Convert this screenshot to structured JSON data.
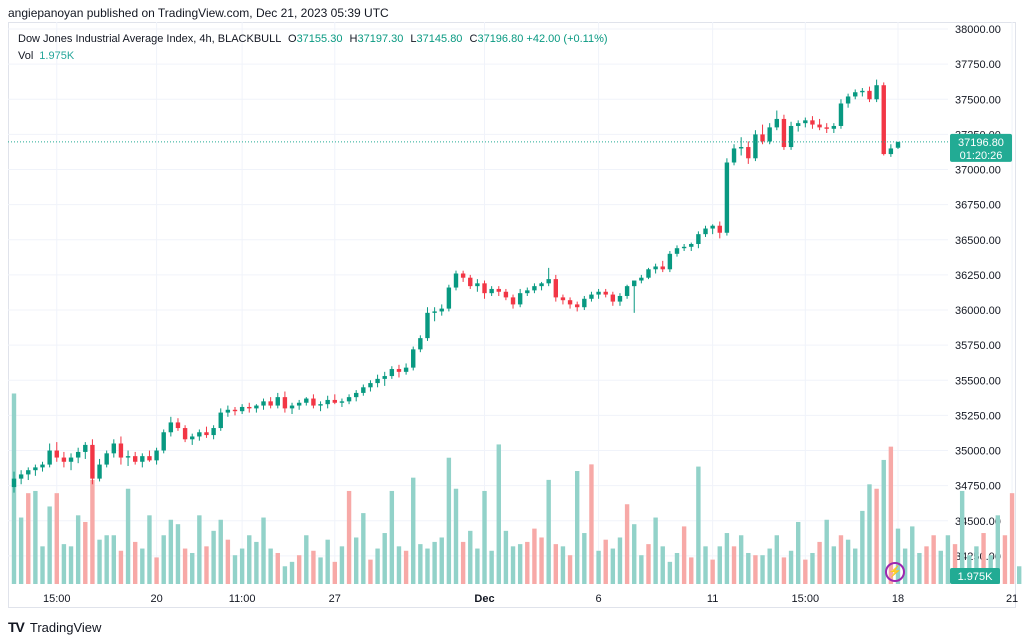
{
  "publisher": "angiepanoyan published on TradingView.com, Dec 21, 2023 05:39 UTC",
  "legend": {
    "symbol": "Dow Jones Industrial Average Index, 4h, BLACKBULL",
    "open_k": "O",
    "open": "37155.30",
    "high_k": "H",
    "high": "37197.30",
    "low_k": "L",
    "low": "37145.80",
    "close_k": "C",
    "close": "37196.80",
    "change": "+42.00 (+0.11%)",
    "vol_label": "Vol",
    "vol_value": "1.975K"
  },
  "price_tag": {
    "price": "37196.80",
    "countdown": "01:20:26"
  },
  "volume_tag": "1.975K",
  "footer": {
    "brand": "TradingView"
  },
  "colors": {
    "up": "#089981",
    "down": "#f23645",
    "vol_up": "#92d2c9",
    "vol_down": "#f7a9a7",
    "grid": "#f0f3fa",
    "price_line": "#22ab94"
  },
  "chart_data": {
    "type": "candlestick",
    "title": "Dow Jones Industrial Average Index, 4h, BLACKBULL",
    "ylim": [
      34050,
      38050
    ],
    "y_ticks": [
      "34250.00",
      "34500.00",
      "34750.00",
      "35000.00",
      "35250.00",
      "35500.00",
      "35750.00",
      "36000.00",
      "36250.00",
      "36500.00",
      "36750.00",
      "37000.00",
      "37250.00",
      "37500.00",
      "37750.00",
      "38000.00"
    ],
    "x_ticks": [
      {
        "label": "15:00",
        "index": 6
      },
      {
        "label": "20",
        "index": 20
      },
      {
        "label": "11:00",
        "index": 32
      },
      {
        "label": "27",
        "index": 45
      },
      {
        "label": "Dec",
        "index": 66
      },
      {
        "label": "6",
        "index": 82
      },
      {
        "label": "11",
        "index": 98
      },
      {
        "label": "15:00",
        "index": 111
      },
      {
        "label": "18",
        "index": 124
      },
      {
        "label": "21",
        "index": 140
      }
    ],
    "candles": [
      [
        34740,
        34850,
        34700,
        34800
      ],
      [
        34800,
        34860,
        34760,
        34830
      ],
      [
        34830,
        34880,
        34790,
        34860
      ],
      [
        34860,
        34900,
        34820,
        34880
      ],
      [
        34880,
        34920,
        34850,
        34900
      ],
      [
        34900,
        35050,
        34880,
        35000
      ],
      [
        35000,
        35060,
        34920,
        34950
      ],
      [
        34950,
        34990,
        34880,
        34920
      ],
      [
        34920,
        34980,
        34860,
        34950
      ],
      [
        34950,
        35020,
        34910,
        34990
      ],
      [
        34990,
        35060,
        34940,
        35040
      ],
      [
        35040,
        35080,
        34760,
        34800
      ],
      [
        34800,
        34940,
        34780,
        34900
      ],
      [
        34900,
        35000,
        34880,
        34980
      ],
      [
        34980,
        35080,
        34950,
        35050
      ],
      [
        35050,
        35100,
        34900,
        34950
      ],
      [
        34950,
        35000,
        34890,
        34960
      ],
      [
        34960,
        34990,
        34900,
        34920
      ],
      [
        34920,
        34980,
        34880,
        34960
      ],
      [
        34960,
        35000,
        34920,
        34930
      ],
      [
        34930,
        35020,
        34900,
        35000
      ],
      [
        35000,
        35150,
        34980,
        35130
      ],
      [
        35130,
        35240,
        35100,
        35200
      ],
      [
        35200,
        35230,
        35140,
        35160
      ],
      [
        35160,
        35180,
        35060,
        35080
      ],
      [
        35080,
        35120,
        35040,
        35100
      ],
      [
        35100,
        35150,
        35070,
        35130
      ],
      [
        35130,
        35170,
        35090,
        35110
      ],
      [
        35110,
        35180,
        35080,
        35160
      ],
      [
        35160,
        35300,
        35140,
        35270
      ],
      [
        35270,
        35320,
        35240,
        35290
      ],
      [
        35290,
        35310,
        35250,
        35280
      ],
      [
        35280,
        35330,
        35260,
        35310
      ],
      [
        35310,
        35340,
        35270,
        35300
      ],
      [
        35300,
        35330,
        35270,
        35320
      ],
      [
        35320,
        35370,
        35290,
        35350
      ],
      [
        35350,
        35380,
        35300,
        35320
      ],
      [
        35320,
        35410,
        35300,
        35380
      ],
      [
        35380,
        35420,
        35270,
        35300
      ],
      [
        35300,
        35340,
        35260,
        35320
      ],
      [
        35320,
        35360,
        35290,
        35340
      ],
      [
        35340,
        35380,
        35320,
        35370
      ],
      [
        35370,
        35400,
        35300,
        35320
      ],
      [
        35320,
        35350,
        35280,
        35330
      ],
      [
        35330,
        35390,
        35300,
        35360
      ],
      [
        35360,
        35400,
        35330,
        35340
      ],
      [
        35340,
        35370,
        35310,
        35350
      ],
      [
        35350,
        35400,
        35330,
        35380
      ],
      [
        35380,
        35430,
        35350,
        35410
      ],
      [
        35410,
        35470,
        35390,
        35450
      ],
      [
        35450,
        35500,
        35420,
        35480
      ],
      [
        35480,
        35540,
        35450,
        35510
      ],
      [
        35510,
        35560,
        35460,
        35530
      ],
      [
        35530,
        35600,
        35510,
        35580
      ],
      [
        35580,
        35610,
        35520,
        35560
      ],
      [
        35560,
        35620,
        35540,
        35590
      ],
      [
        35590,
        35740,
        35570,
        35720
      ],
      [
        35720,
        35820,
        35700,
        35800
      ],
      [
        35800,
        36020,
        35780,
        35980
      ],
      [
        35980,
        36020,
        35920,
        35990
      ],
      [
        35990,
        36040,
        35960,
        36010
      ],
      [
        36010,
        36180,
        35990,
        36160
      ],
      [
        36160,
        36280,
        36140,
        36260
      ],
      [
        36260,
        36280,
        36200,
        36230
      ],
      [
        36230,
        36250,
        36150,
        36170
      ],
      [
        36170,
        36220,
        36130,
        36190
      ],
      [
        36190,
        36210,
        36080,
        36120
      ],
      [
        36120,
        36170,
        36100,
        36150
      ],
      [
        36150,
        36170,
        36100,
        36130
      ],
      [
        36130,
        36150,
        36070,
        36090
      ],
      [
        36090,
        36110,
        36010,
        36040
      ],
      [
        36040,
        36150,
        36020,
        36120
      ],
      [
        36120,
        36160,
        36100,
        36140
      ],
      [
        36140,
        36190,
        36120,
        36170
      ],
      [
        36170,
        36200,
        36140,
        36190
      ],
      [
        36190,
        36300,
        36170,
        36220
      ],
      [
        36220,
        36250,
        36060,
        36090
      ],
      [
        36090,
        36110,
        36040,
        36070
      ],
      [
        36070,
        36090,
        36010,
        36040
      ],
      [
        36040,
        36060,
        35990,
        36020
      ],
      [
        36020,
        36100,
        36000,
        36080
      ],
      [
        36080,
        36130,
        36060,
        36110
      ],
      [
        36110,
        36150,
        36080,
        36130
      ],
      [
        36130,
        36150,
        36090,
        36110
      ],
      [
        36110,
        36130,
        36030,
        36060
      ],
      [
        36060,
        36120,
        36030,
        36100
      ],
      [
        36100,
        36180,
        36080,
        36170
      ],
      [
        36170,
        36200,
        35980,
        36210
      ],
      [
        36210,
        36250,
        36190,
        36230
      ],
      [
        36230,
        36300,
        36220,
        36290
      ],
      [
        36290,
        36330,
        36260,
        36310
      ],
      [
        36310,
        36350,
        36270,
        36290
      ],
      [
        36290,
        36420,
        36270,
        36400
      ],
      [
        36400,
        36460,
        36380,
        36440
      ],
      [
        36440,
        36470,
        36420,
        36450
      ],
      [
        36450,
        36480,
        36420,
        36470
      ],
      [
        36470,
        36560,
        36440,
        36540
      ],
      [
        36540,
        36600,
        36520,
        36580
      ],
      [
        36580,
        36610,
        36540,
        36600
      ],
      [
        36600,
        36630,
        36510,
        36550
      ],
      [
        36550,
        37080,
        36530,
        37050
      ],
      [
        37050,
        37180,
        37030,
        37150
      ],
      [
        37150,
        37230,
        37100,
        37160
      ],
      [
        37160,
        37200,
        37040,
        37080
      ],
      [
        37080,
        37280,
        37060,
        37250
      ],
      [
        37250,
        37320,
        37180,
        37200
      ],
      [
        37200,
        37330,
        37180,
        37300
      ],
      [
        37300,
        37420,
        37280,
        37360
      ],
      [
        37360,
        37390,
        37140,
        37160
      ],
      [
        37160,
        37340,
        37140,
        37310
      ],
      [
        37310,
        37350,
        37270,
        37330
      ],
      [
        37330,
        37370,
        37300,
        37350
      ],
      [
        37350,
        37380,
        37290,
        37320
      ],
      [
        37320,
        37360,
        37280,
        37300
      ],
      [
        37300,
        37330,
        37260,
        37290
      ],
      [
        37290,
        37330,
        37260,
        37310
      ],
      [
        37310,
        37500,
        37290,
        37470
      ],
      [
        37470,
        37540,
        37440,
        37520
      ],
      [
        37520,
        37570,
        37500,
        37550
      ],
      [
        37550,
        37580,
        37520,
        37560
      ],
      [
        37560,
        37590,
        37480,
        37500
      ],
      [
        37500,
        37640,
        37480,
        37600
      ],
      [
        37600,
        37620,
        37100,
        37110
      ],
      [
        37110,
        37180,
        37090,
        37150
      ],
      [
        37155,
        37197,
        37146,
        37197
      ]
    ],
    "volume": [
      [
        860,
        1
      ],
      [
        300,
        1
      ],
      [
        410,
        0
      ],
      [
        420,
        1
      ],
      [
        170,
        1
      ],
      [
        350,
        1
      ],
      [
        410,
        0
      ],
      [
        180,
        1
      ],
      [
        170,
        1
      ],
      [
        310,
        1
      ],
      [
        280,
        0
      ],
      [
        470,
        0
      ],
      [
        200,
        1
      ],
      [
        220,
        1
      ],
      [
        220,
        1
      ],
      [
        150,
        0
      ],
      [
        430,
        1
      ],
      [
        190,
        0
      ],
      [
        160,
        1
      ],
      [
        310,
        1
      ],
      [
        120,
        0
      ],
      [
        220,
        1
      ],
      [
        290,
        1
      ],
      [
        270,
        1
      ],
      [
        160,
        0
      ],
      [
        140,
        1
      ],
      [
        310,
        1
      ],
      [
        170,
        0
      ],
      [
        240,
        1
      ],
      [
        290,
        1
      ],
      [
        200,
        0
      ],
      [
        130,
        1
      ],
      [
        160,
        1
      ],
      [
        220,
        1
      ],
      [
        190,
        1
      ],
      [
        300,
        1
      ],
      [
        160,
        1
      ],
      [
        140,
        0
      ],
      [
        80,
        1
      ],
      [
        100,
        1
      ],
      [
        130,
        0
      ],
      [
        220,
        1
      ],
      [
        150,
        0
      ],
      [
        120,
        1
      ],
      [
        200,
        1
      ],
      [
        100,
        0
      ],
      [
        170,
        1
      ],
      [
        420,
        0
      ],
      [
        210,
        1
      ],
      [
        320,
        1
      ],
      [
        110,
        0
      ],
      [
        160,
        1
      ],
      [
        230,
        1
      ],
      [
        420,
        1
      ],
      [
        170,
        1
      ],
      [
        150,
        0
      ],
      [
        480,
        1
      ],
      [
        180,
        1
      ],
      [
        160,
        1
      ],
      [
        190,
        1
      ],
      [
        210,
        1
      ],
      [
        570,
        1
      ],
      [
        430,
        1
      ],
      [
        190,
        0
      ],
      [
        240,
        1
      ],
      [
        160,
        1
      ],
      [
        420,
        1
      ],
      [
        150,
        1
      ],
      [
        630,
        1
      ],
      [
        240,
        1
      ],
      [
        170,
        1
      ],
      [
        180,
        1
      ],
      [
        190,
        0
      ],
      [
        250,
        0
      ],
      [
        210,
        0
      ],
      [
        470,
        1
      ],
      [
        180,
        0
      ],
      [
        170,
        1
      ],
      [
        130,
        0
      ],
      [
        510,
        1
      ],
      [
        230,
        1
      ],
      [
        540,
        0
      ],
      [
        150,
        1
      ],
      [
        200,
        0
      ],
      [
        160,
        1
      ],
      [
        210,
        1
      ],
      [
        360,
        0
      ],
      [
        270,
        1
      ],
      [
        130,
        1
      ],
      [
        180,
        0
      ],
      [
        300,
        1
      ],
      [
        170,
        1
      ],
      [
        100,
        1
      ],
      [
        140,
        1
      ],
      [
        260,
        0
      ],
      [
        120,
        0
      ],
      [
        530,
        1
      ],
      [
        170,
        1
      ],
      [
        110,
        0
      ],
      [
        170,
        1
      ],
      [
        230,
        1
      ],
      [
        170,
        0
      ],
      [
        220,
        1
      ],
      [
        140,
        1
      ],
      [
        130,
        0
      ],
      [
        130,
        1
      ],
      [
        160,
        1
      ],
      [
        220,
        1
      ],
      [
        120,
        0
      ],
      [
        150,
        1
      ],
      [
        280,
        1
      ],
      [
        110,
        0
      ],
      [
        140,
        1
      ],
      [
        190,
        0
      ],
      [
        290,
        1
      ],
      [
        170,
        1
      ],
      [
        220,
        0
      ],
      [
        200,
        1
      ],
      [
        160,
        1
      ],
      [
        330,
        1
      ],
      [
        450,
        1
      ],
      [
        430,
        0
      ],
      [
        560,
        1
      ],
      [
        620,
        0
      ],
      [
        250,
        1
      ],
      [
        160,
        1
      ],
      [
        260,
        1
      ],
      [
        140,
        1
      ],
      [
        170,
        0
      ],
      [
        220,
        0
      ],
      [
        150,
        1
      ],
      [
        220,
        1
      ],
      [
        180,
        0
      ],
      [
        420,
        1
      ],
      [
        130,
        1
      ],
      [
        170,
        1
      ],
      [
        230,
        0
      ],
      [
        130,
        1
      ],
      [
        310,
        1
      ],
      [
        220,
        0
      ],
      [
        410,
        0
      ],
      [
        80,
        1
      ]
    ]
  }
}
